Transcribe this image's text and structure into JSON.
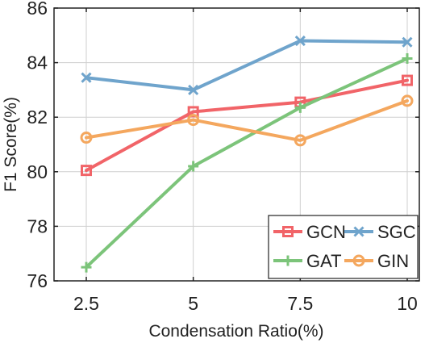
{
  "chart_data": {
    "type": "line",
    "xlabel": "Condensation Ratio(%)",
    "ylabel": "F1 Score(%)",
    "x": [
      "2.5",
      "5",
      "7.5",
      "10"
    ],
    "ylim": [
      76,
      86
    ],
    "yticks": [
      76,
      78,
      80,
      82,
      84,
      86
    ],
    "grid": true,
    "legend_position": "bottom-right",
    "series": [
      {
        "name": "GCN",
        "values": [
          80.05,
          82.2,
          82.55,
          83.35
        ],
        "color": "#f16468",
        "marker": "square"
      },
      {
        "name": "SGC",
        "values": [
          83.45,
          83.0,
          84.8,
          84.75
        ],
        "color": "#6fa4cc",
        "marker": "x"
      },
      {
        "name": "GAT",
        "values": [
          76.5,
          80.2,
          82.35,
          84.15
        ],
        "color": "#7cc47a",
        "marker": "plus"
      },
      {
        "name": "GIN",
        "values": [
          81.25,
          81.9,
          81.15,
          82.6
        ],
        "color": "#f4a75e",
        "marker": "circle"
      }
    ]
  }
}
